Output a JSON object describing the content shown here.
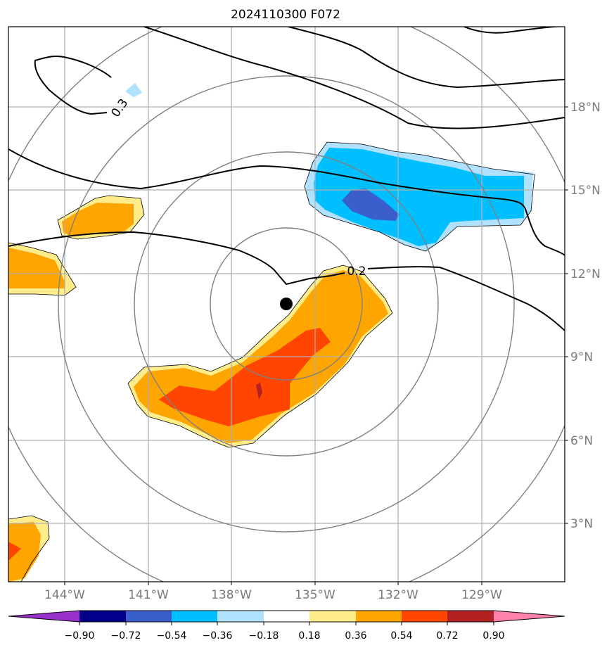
{
  "title": "2024110300 F072",
  "lon_ticks": [
    "144°W",
    "141°W",
    "138°W",
    "135°W",
    "132°W",
    "129°W"
  ],
  "lat_ticks": [
    "18°N",
    "15°N",
    "12°N",
    "9°N",
    "6°N",
    "3°N"
  ],
  "contour_labels": [
    "0.3",
    "0.2"
  ],
  "colorbar": {
    "ticks": [
      "−0.90",
      "−0.72",
      "−0.54",
      "−0.36",
      "−0.18",
      "0.18",
      "0.36",
      "0.54",
      "0.72",
      "0.90"
    ],
    "colors": [
      "#9932cc",
      "#00008b",
      "#3a5fcd",
      "#00bfff",
      "#b0e2ff",
      "#ffffff",
      "#ffec8b",
      "#ffa500",
      "#ff4500",
      "#b22222",
      "#ff82ab"
    ]
  },
  "colors": {
    "grid": "#b0b0b0",
    "range_rings": "#808080",
    "contours": "#000000",
    "storm_center": "#000000"
  }
}
